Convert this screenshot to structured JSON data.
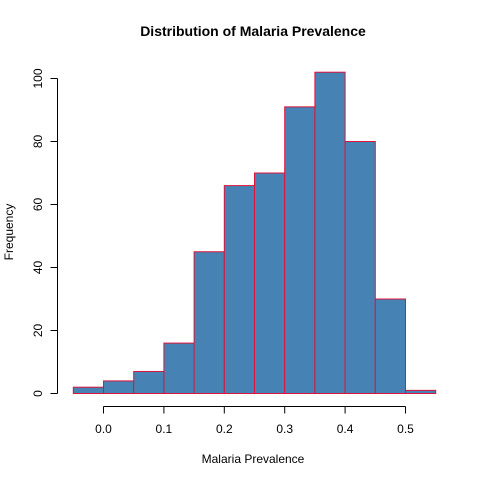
{
  "colors": {
    "bar_fill": "#4682B4",
    "bar_border": "#DC143C",
    "axis": "#000000",
    "background": "#FFFFFF"
  },
  "chart_data": {
    "type": "bar",
    "title": "Distribution of Malaria Prevalence",
    "xlabel": "Malaria Prevalence",
    "ylabel": "Frequency",
    "bins": [
      {
        "start": -0.05,
        "end": 0.0,
        "count": 2
      },
      {
        "start": 0.0,
        "end": 0.05,
        "count": 4
      },
      {
        "start": 0.05,
        "end": 0.1,
        "count": 7
      },
      {
        "start": 0.1,
        "end": 0.15,
        "count": 16
      },
      {
        "start": 0.15,
        "end": 0.2,
        "count": 45
      },
      {
        "start": 0.2,
        "end": 0.25,
        "count": 66
      },
      {
        "start": 0.25,
        "end": 0.3,
        "count": 70
      },
      {
        "start": 0.3,
        "end": 0.35,
        "count": 91
      },
      {
        "start": 0.35,
        "end": 0.4,
        "count": 102
      },
      {
        "start": 0.4,
        "end": 0.45,
        "count": 80
      },
      {
        "start": 0.45,
        "end": 0.5,
        "count": 30
      },
      {
        "start": 0.5,
        "end": 0.55,
        "count": 1
      }
    ],
    "xlim": [
      -0.05,
      0.55
    ],
    "ylim": [
      0,
      102
    ],
    "xticks": [
      0.0,
      0.1,
      0.2,
      0.3,
      0.4,
      0.5
    ],
    "xtick_labels": [
      "0.0",
      "0.1",
      "0.2",
      "0.3",
      "0.4",
      "0.5"
    ],
    "yticks": [
      0,
      20,
      40,
      60,
      80,
      100
    ],
    "ytick_labels": [
      "0",
      "20",
      "40",
      "60",
      "80",
      "100"
    ],
    "grid": false,
    "legend": "none"
  }
}
